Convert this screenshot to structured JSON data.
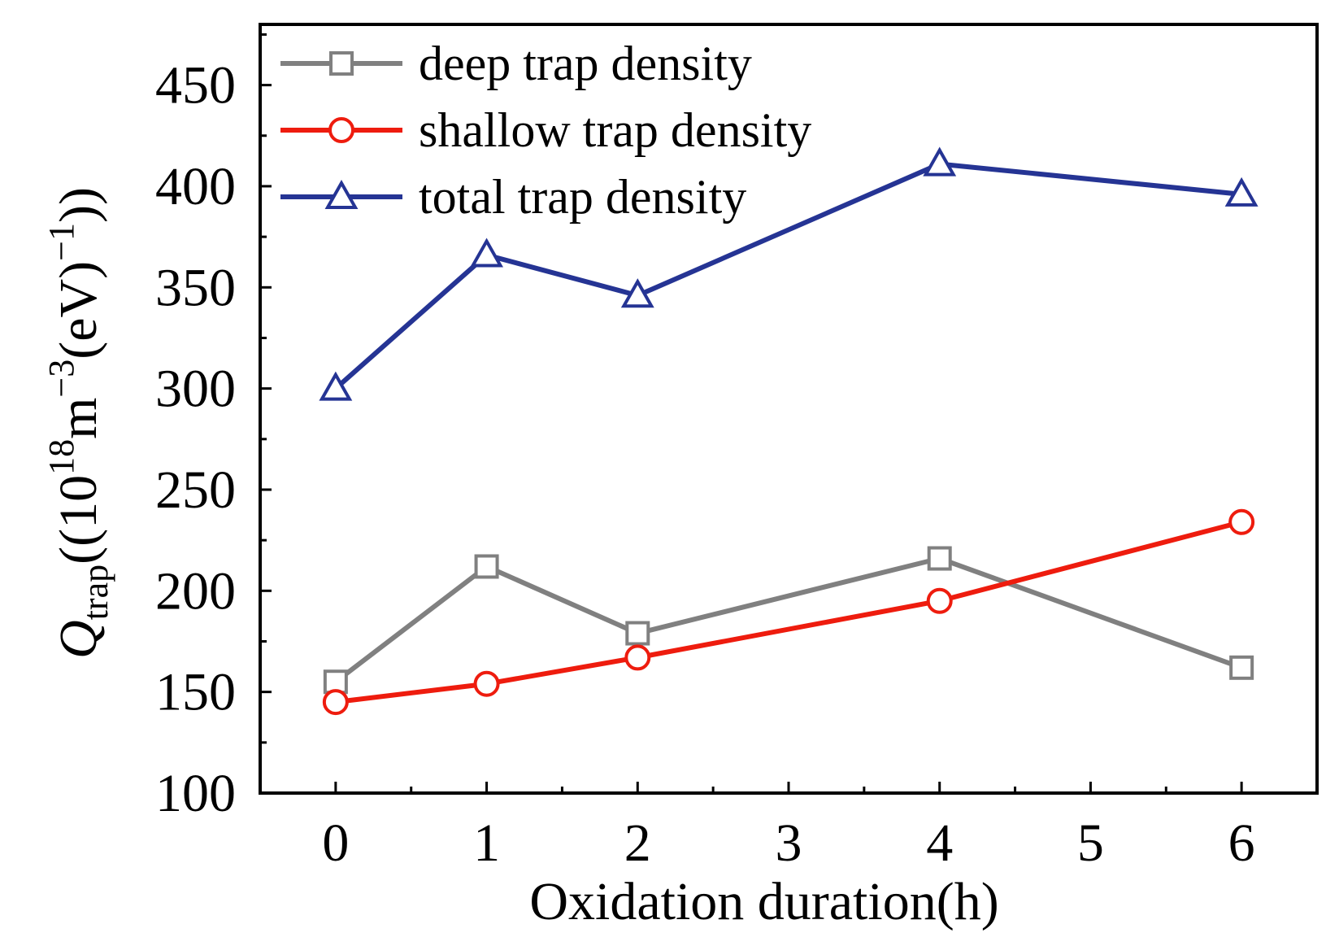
{
  "chart_data": {
    "type": "line",
    "title": "",
    "xlabel": "Oxidation duration(h)",
    "ylabel": {
      "symbol": "Q",
      "subscript": "trap",
      "unit_open": "((10",
      "exp1": "18",
      "unit_mid": "m",
      "exp2": "−3",
      "unit_mid2": "(eV)",
      "exp3": "−1",
      "unit_close": "))"
    },
    "xlim": [
      -0.5,
      6.5
    ],
    "ylim": [
      100,
      480
    ],
    "x_ticks": [
      0,
      1,
      2,
      3,
      4,
      5,
      6
    ],
    "x_tick_labels": [
      "0",
      "1",
      "2",
      "3",
      "4",
      "5",
      "6"
    ],
    "y_ticks": [
      100,
      150,
      200,
      250,
      300,
      350,
      400,
      450
    ],
    "y_tick_labels": [
      "100",
      "150",
      "200",
      "250",
      "300",
      "350",
      "400",
      "450"
    ],
    "grid": false,
    "legend_position": "top-left",
    "x": [
      0,
      1,
      2,
      4,
      6
    ],
    "series": [
      {
        "name": "deep trap density",
        "marker": "square",
        "color": "#808080",
        "values": [
          155,
          212,
          179,
          216,
          162
        ]
      },
      {
        "name": "shallow trap density",
        "marker": "circle",
        "color": "#ee1c0e",
        "values": [
          145,
          154,
          167,
          195,
          234
        ]
      },
      {
        "name": "total trap density",
        "marker": "triangle",
        "color": "#253494",
        "values": [
          300,
          366,
          346,
          411,
          396
        ]
      }
    ]
  }
}
